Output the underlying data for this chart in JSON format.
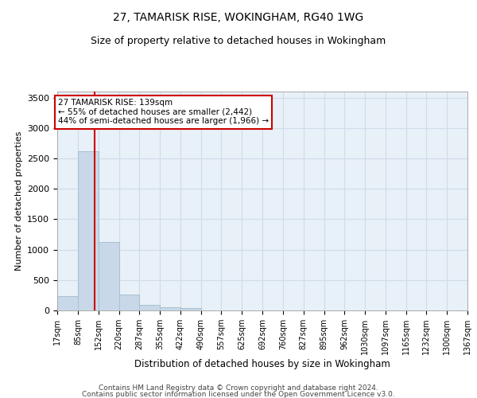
{
  "title": "27, TAMARISK RISE, WOKINGHAM, RG40 1WG",
  "subtitle": "Size of property relative to detached houses in Wokingham",
  "xlabel": "Distribution of detached houses by size in Wokingham",
  "ylabel": "Number of detached properties",
  "bar_color": "#c8d8e8",
  "bar_edge_color": "#a8c0d0",
  "grid_color": "#d0dce8",
  "background_color": "#e8f0f8",
  "property_line_x": 139,
  "annotation_text": "27 TAMARISK RISE: 139sqm\n← 55% of detached houses are smaller (2,442)\n44% of semi-detached houses are larger (1,966) →",
  "annotation_box_color": "#ffffff",
  "annotation_box_edge_color": "#cc0000",
  "property_line_color": "#cc0000",
  "bin_edges": [
    17,
    85,
    152,
    220,
    287,
    355,
    422,
    490,
    557,
    625,
    692,
    760,
    827,
    895,
    962,
    1030,
    1097,
    1165,
    1232,
    1300,
    1367
  ],
  "bar_heights": [
    230,
    2620,
    1120,
    260,
    95,
    50,
    35,
    0,
    0,
    0,
    0,
    0,
    0,
    0,
    0,
    0,
    0,
    0,
    0,
    0
  ],
  "ylim": [
    0,
    3600
  ],
  "yticks": [
    0,
    500,
    1000,
    1500,
    2000,
    2500,
    3000,
    3500
  ],
  "footnote1": "Contains HM Land Registry data © Crown copyright and database right 2024.",
  "footnote2": "Contains public sector information licensed under the Open Government Licence v3.0."
}
